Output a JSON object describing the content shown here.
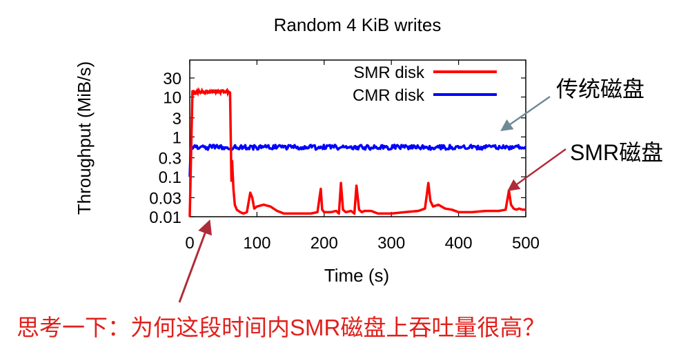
{
  "chart_data": {
    "type": "line",
    "title": "Random 4 KiB writes",
    "xlabel": "Time (s)",
    "ylabel": "Throughput (MiB/s)",
    "yscale": "log",
    "xlim": [
      0,
      500
    ],
    "ylim": [
      0.01,
      30
    ],
    "xticks": [
      0,
      100,
      200,
      300,
      400,
      500
    ],
    "xtick_labels": [
      "0",
      "100",
      "200",
      "300",
      "400",
      "500"
    ],
    "yticks": [
      0.01,
      0.03,
      0.1,
      0.3,
      1,
      3,
      10,
      30
    ],
    "ytick_labels": [
      "0.01",
      "0.03",
      "0.1",
      "0.3",
      "1",
      "3",
      "10",
      "30"
    ],
    "grid": false,
    "legend_position": "top-right",
    "series": [
      {
        "name": "SMR disk",
        "color": "#ff0000",
        "x": [
          0,
          4,
          6,
          10,
          20,
          30,
          40,
          50,
          60,
          62,
          63,
          65,
          67,
          70,
          75,
          80,
          85,
          90,
          93,
          96,
          100,
          110,
          120,
          130,
          135,
          140,
          150,
          160,
          180,
          190,
          195,
          197,
          200,
          210,
          218,
          222,
          225,
          228,
          232,
          240,
          245,
          248,
          252,
          256,
          260,
          270,
          280,
          300,
          320,
          340,
          350,
          355,
          358,
          362,
          370,
          380,
          390,
          400,
          420,
          440,
          460,
          470,
          475,
          478,
          482,
          486,
          490,
          495,
          500
        ],
        "values": [
          0.01,
          14,
          12,
          14,
          13,
          14,
          13,
          14,
          13,
          0.08,
          0.25,
          0.05,
          0.02,
          0.015,
          0.013,
          0.012,
          0.013,
          0.04,
          0.03,
          0.016,
          0.018,
          0.02,
          0.018,
          0.014,
          0.013,
          0.012,
          0.012,
          0.012,
          0.012,
          0.013,
          0.05,
          0.015,
          0.013,
          0.013,
          0.014,
          0.012,
          0.07,
          0.015,
          0.013,
          0.014,
          0.012,
          0.06,
          0.015,
          0.013,
          0.014,
          0.014,
          0.012,
          0.012,
          0.013,
          0.014,
          0.016,
          0.07,
          0.025,
          0.018,
          0.02,
          0.016,
          0.015,
          0.013,
          0.013,
          0.014,
          0.014,
          0.015,
          0.045,
          0.02,
          0.016,
          0.015,
          0.016,
          0.015,
          0.015
        ]
      },
      {
        "name": "CMR disk",
        "color": "#0000ff",
        "x": [
          0,
          2,
          500
        ],
        "values": [
          0.1,
          0.6,
          0.55
        ],
        "note_noise": "fluctuates around 0.55"
      }
    ]
  },
  "annotations": {
    "cmr_label": "传统磁盘",
    "smr_label": "SMR磁盘",
    "question": "思考一下：为何这段时间内SMR磁盘上吞吐量很高？",
    "question_color": "#e0201b",
    "cmr_arrow_color": "#6e8a96",
    "smr_arrow_color": "#b02b39"
  }
}
